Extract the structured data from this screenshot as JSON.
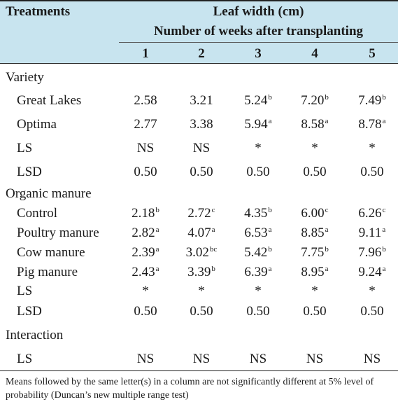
{
  "header": {
    "treatments": "Treatments",
    "measure": "Leaf width (cm)",
    "subtitle": "Number of weeks after transplanting",
    "weeks": [
      "1",
      "2",
      "3",
      "4",
      "5"
    ]
  },
  "sections": [
    {
      "title": "Variety",
      "rows": [
        {
          "label": "Great Lakes",
          "cells": [
            {
              "v": "2.58",
              "s": ""
            },
            {
              "v": "3.21",
              "s": ""
            },
            {
              "v": "5.24",
              "s": "b"
            },
            {
              "v": "7.20",
              "s": "b"
            },
            {
              "v": "7.49",
              "s": "b"
            }
          ]
        },
        {
          "label": "Optima",
          "cells": [
            {
              "v": "2.77",
              "s": ""
            },
            {
              "v": "3.38",
              "s": ""
            },
            {
              "v": "5.94",
              "s": "a"
            },
            {
              "v": "8.58",
              "s": "a"
            },
            {
              "v": "8.78",
              "s": "a"
            }
          ]
        },
        {
          "label": "LS",
          "cells": [
            {
              "v": "NS",
              "s": ""
            },
            {
              "v": "NS",
              "s": ""
            },
            {
              "v": "*",
              "s": ""
            },
            {
              "v": "*",
              "s": ""
            },
            {
              "v": "*",
              "s": ""
            }
          ]
        },
        {
          "label": "LSD",
          "cells": [
            {
              "v": "0.50",
              "s": ""
            },
            {
              "v": "0.50",
              "s": ""
            },
            {
              "v": "0.50",
              "s": ""
            },
            {
              "v": "0.50",
              "s": ""
            },
            {
              "v": "0.50",
              "s": ""
            }
          ]
        }
      ]
    },
    {
      "title": "Organic manure",
      "rows": [
        {
          "label": "Control",
          "cells": [
            {
              "v": "2.18",
              "s": "b"
            },
            {
              "v": "2.72",
              "s": "c"
            },
            {
              "v": "4.35",
              "s": "b"
            },
            {
              "v": "6.00",
              "s": "c"
            },
            {
              "v": "6.26",
              "s": "c"
            }
          ]
        },
        {
          "label": "Poultry manure",
          "cells": [
            {
              "v": "2.82",
              "s": "a"
            },
            {
              "v": "4.07",
              "s": "a"
            },
            {
              "v": "6.53",
              "s": "a"
            },
            {
              "v": "8.85",
              "s": "a"
            },
            {
              "v": "9.11",
              "s": "a"
            }
          ]
        },
        {
          "label": "Cow manure",
          "cells": [
            {
              "v": "2.39",
              "s": "a"
            },
            {
              "v": "3.02",
              "s": "bc"
            },
            {
              "v": "5.42",
              "s": "b"
            },
            {
              "v": "7.75",
              "s": "b"
            },
            {
              "v": "7.96",
              "s": "b"
            }
          ]
        },
        {
          "label": "Pig manure",
          "cells": [
            {
              "v": "2.43",
              "s": "a"
            },
            {
              "v": "3.39",
              "s": "b"
            },
            {
              "v": "6.39",
              "s": "a"
            },
            {
              "v": "8.95",
              "s": "a"
            },
            {
              "v": "9.24",
              "s": "a"
            }
          ]
        },
        {
          "label": "LS",
          "cells": [
            {
              "v": "*",
              "s": ""
            },
            {
              "v": "*",
              "s": ""
            },
            {
              "v": "*",
              "s": ""
            },
            {
              "v": "*",
              "s": ""
            },
            {
              "v": "*",
              "s": ""
            }
          ]
        },
        {
          "label": "LSD",
          "cells": [
            {
              "v": "0.50",
              "s": ""
            },
            {
              "v": "0.50",
              "s": ""
            },
            {
              "v": "0.50",
              "s": ""
            },
            {
              "v": "0.50",
              "s": ""
            },
            {
              "v": "0.50",
              "s": ""
            }
          ]
        }
      ]
    },
    {
      "title": "Interaction",
      "rows": [
        {
          "label": "LS",
          "cells": [
            {
              "v": "NS",
              "s": ""
            },
            {
              "v": "NS",
              "s": ""
            },
            {
              "v": "NS",
              "s": ""
            },
            {
              "v": "NS",
              "s": ""
            },
            {
              "v": "NS",
              "s": ""
            }
          ]
        }
      ]
    }
  ],
  "footnote": "Means followed by the same letter(s) in a column are not significantly different at 5% level of probability (Duncan’s new multiple range test)",
  "colors": {
    "header_bg": "#c8e4ef",
    "text": "#1a1a1a"
  }
}
